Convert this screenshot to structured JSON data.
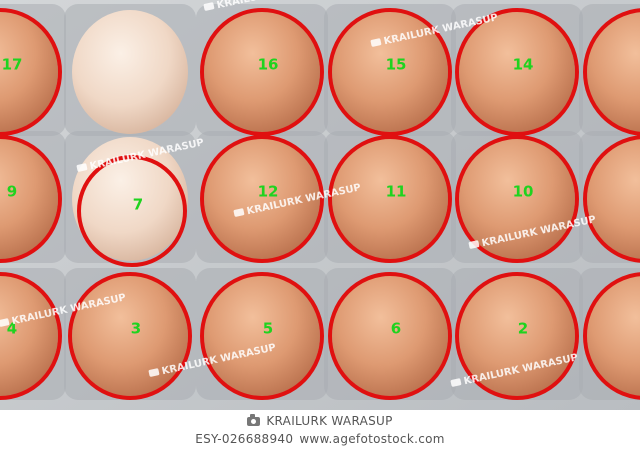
{
  "photo": {
    "eggs": [
      {
        "label": "17",
        "marked": true
      },
      {
        "label": "",
        "marked": false
      },
      {
        "label": "16",
        "marked": true
      },
      {
        "label": "15",
        "marked": true
      },
      {
        "label": "14",
        "marked": true
      },
      {
        "label": "",
        "marked": true
      },
      {
        "label": "9",
        "marked": true
      },
      {
        "label": "7",
        "marked": true
      },
      {
        "label": "12",
        "marked": true
      },
      {
        "label": "11",
        "marked": true
      },
      {
        "label": "10",
        "marked": true
      },
      {
        "label": "",
        "marked": true
      },
      {
        "label": "4",
        "marked": true
      },
      {
        "label": "3",
        "marked": true
      },
      {
        "label": "5",
        "marked": true
      },
      {
        "label": "6",
        "marked": true
      },
      {
        "label": "2",
        "marked": true
      },
      {
        "label": "",
        "marked": true
      }
    ],
    "watermark_text": "KRAILURK WARASUP",
    "colors": {
      "circle": "#e01010",
      "number": "#1fd31f",
      "tray": "#c9cccf",
      "egg_brown": "#dc9a72",
      "egg_white": "#f2dccc"
    }
  },
  "footer": {
    "credit": "KRAILURK WARASUP",
    "image_id": "ESY-026688940",
    "site": "www.agefotostock.com"
  }
}
